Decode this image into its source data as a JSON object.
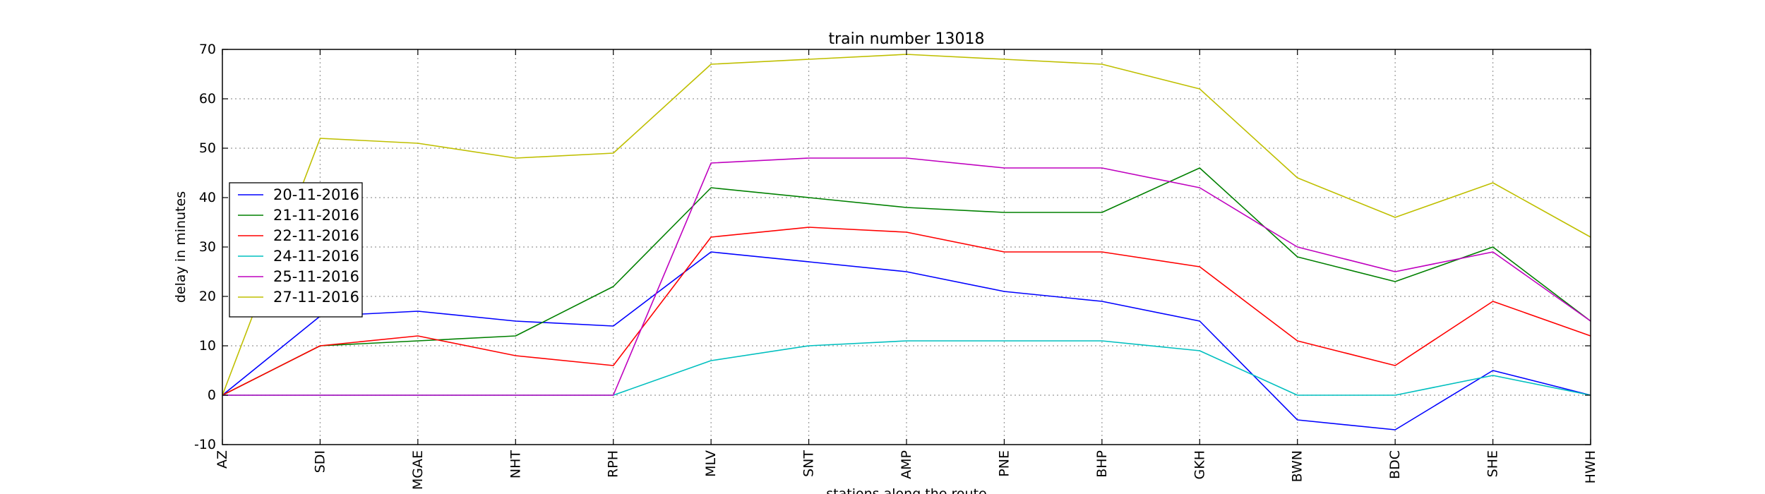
{
  "chart_data": {
    "type": "line",
    "title": "train number 13018",
    "xlabel": "stations along the route",
    "ylabel": "delay in minutes",
    "categories": [
      "AZ",
      "SDI",
      "MGAE",
      "NHT",
      "RPH",
      "MLV",
      "SNT",
      "AMP",
      "PNE",
      "BHP",
      "GKH",
      "BWN",
      "BDC",
      "SHE",
      "HWH"
    ],
    "ylim": [
      -10,
      70
    ],
    "yticks": [
      -10,
      0,
      10,
      20,
      30,
      40,
      50,
      60,
      70
    ],
    "grid": true,
    "legend_position": "center-left",
    "series": [
      {
        "name": "20-11-2016",
        "color": "#0000ff",
        "values": [
          0,
          16,
          17,
          15,
          14,
          29,
          27,
          25,
          21,
          19,
          15,
          -5,
          -7,
          5,
          0
        ]
      },
      {
        "name": "21-11-2016",
        "color": "#008000",
        "values": [
          0,
          10,
          11,
          12,
          22,
          42,
          40,
          38,
          37,
          37,
          46,
          28,
          23,
          30,
          15
        ]
      },
      {
        "name": "22-11-2016",
        "color": "#ff0000",
        "values": [
          0,
          10,
          12,
          8,
          6,
          32,
          34,
          33,
          29,
          29,
          26,
          11,
          6,
          19,
          12
        ]
      },
      {
        "name": "24-11-2016",
        "color": "#00bfbf",
        "values": [
          0,
          0,
          0,
          0,
          0,
          7,
          10,
          11,
          11,
          11,
          9,
          0,
          0,
          4,
          0
        ]
      },
      {
        "name": "25-11-2016",
        "color": "#bf00bf",
        "values": [
          0,
          0,
          0,
          0,
          0,
          47,
          48,
          48,
          46,
          46,
          42,
          30,
          25,
          29,
          15
        ]
      },
      {
        "name": "27-11-2016",
        "color": "#bfbf00",
        "values": [
          0,
          52,
          51,
          48,
          49,
          67,
          68,
          69,
          68,
          67,
          62,
          44,
          36,
          43,
          32
        ]
      }
    ]
  }
}
